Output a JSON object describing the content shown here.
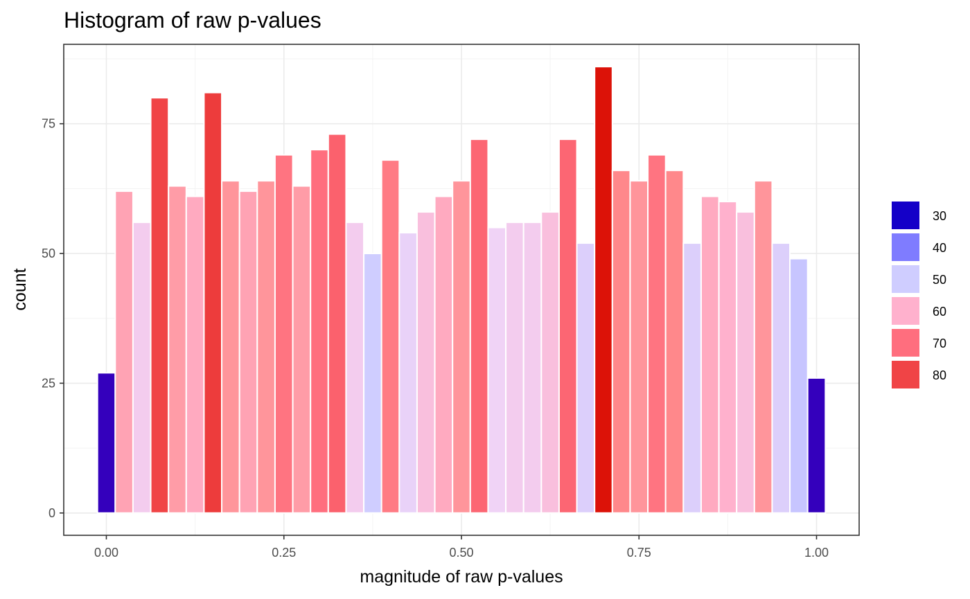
{
  "chart_data": {
    "type": "bar",
    "title": "Histogram of raw p-values",
    "xlabel": "magnitude of raw p-values",
    "ylabel": "count",
    "xlim": [
      -0.06,
      1.06
    ],
    "ylim": [
      -4.3,
      90.3
    ],
    "grid": true,
    "legend_position": "right",
    "x_ticks": [
      {
        "value": 0.0,
        "label": "0.00"
      },
      {
        "value": 0.25,
        "label": "0.25"
      },
      {
        "value": 0.5,
        "label": "0.50"
      },
      {
        "value": 0.75,
        "label": "0.75"
      },
      {
        "value": 1.0,
        "label": "1.00"
      }
    ],
    "y_ticks": [
      {
        "value": 0,
        "label": "0"
      },
      {
        "value": 25,
        "label": "25"
      },
      {
        "value": 50,
        "label": "50"
      },
      {
        "value": 75,
        "label": "75"
      }
    ],
    "bin_width": 0.025,
    "x": [
      0.0,
      0.025,
      0.05,
      0.075,
      0.1,
      0.125,
      0.15,
      0.175,
      0.2,
      0.225,
      0.25,
      0.275,
      0.3,
      0.325,
      0.35,
      0.375,
      0.4,
      0.425,
      0.45,
      0.475,
      0.5,
      0.525,
      0.55,
      0.575,
      0.6,
      0.625,
      0.65,
      0.675,
      0.7,
      0.725,
      0.75,
      0.775,
      0.8,
      0.825,
      0.85,
      0.875,
      0.9,
      0.925,
      0.95,
      0.975,
      1.0
    ],
    "values": [
      27,
      62,
      56,
      80,
      63,
      61,
      81,
      64,
      62,
      64,
      69,
      63,
      70,
      73,
      56,
      50,
      68,
      54,
      58,
      61,
      64,
      72,
      55,
      56,
      56,
      58,
      72,
      52,
      86,
      66,
      64,
      69,
      66,
      52,
      61,
      60,
      58,
      64,
      52,
      49,
      26
    ],
    "legend": {
      "entries": [
        {
          "label": "30",
          "color": "#1400c8"
        },
        {
          "label": "40",
          "color": "#7f7cff"
        },
        {
          "label": "50",
          "color": "#cfcdff"
        },
        {
          "label": "60",
          "color": "#ffb1cd"
        },
        {
          "label": "70",
          "color": "#ff6e7e"
        },
        {
          "label": "80",
          "color": "#f04446"
        }
      ]
    },
    "color_scale": {
      "stops": [
        {
          "value": 27,
          "color": "#3400bc"
        },
        {
          "value": 30,
          "color": "#1400c8"
        },
        {
          "value": 40,
          "color": "#7f7cff"
        },
        {
          "value": 50,
          "color": "#cfcdff"
        },
        {
          "value": 55,
          "color": "#f0d3f6"
        },
        {
          "value": 60,
          "color": "#ffb1cd"
        },
        {
          "value": 65,
          "color": "#ff8e8e"
        },
        {
          "value": 70,
          "color": "#ff6e7e"
        },
        {
          "value": 80,
          "color": "#f04446"
        },
        {
          "value": 86,
          "color": "#dc1208"
        }
      ]
    }
  }
}
